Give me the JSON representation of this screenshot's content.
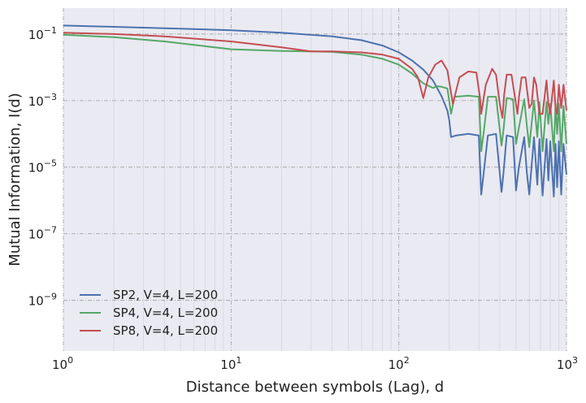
{
  "chart_data": {
    "type": "line",
    "title": "",
    "xlabel": "Distance between symbols (Lag), d",
    "ylabel": "Mutual Information, I(d)",
    "xscale": "log",
    "yscale": "log",
    "xlim": [
      1,
      1000
    ],
    "ylim": [
      3e-11,
      0.6
    ],
    "x_ticks": [
      {
        "value": 1,
        "mantissa": "10",
        "exp": "0"
      },
      {
        "value": 10,
        "mantissa": "10",
        "exp": "1"
      },
      {
        "value": 100,
        "mantissa": "10",
        "exp": "2"
      },
      {
        "value": 1000,
        "mantissa": "10",
        "exp": "3"
      }
    ],
    "y_ticks": [
      {
        "value": 1e-09,
        "mantissa": "10",
        "exp": "−9"
      },
      {
        "value": 1e-07,
        "mantissa": "10",
        "exp": "−7"
      },
      {
        "value": 1e-05,
        "mantissa": "10",
        "exp": "−5"
      },
      {
        "value": 0.001,
        "mantissa": "10",
        "exp": "−3"
      },
      {
        "value": 0.1,
        "mantissa": "10",
        "exp": "−1"
      }
    ],
    "grid": true,
    "legend_position": "bottom-left",
    "background": "#eaeaf2",
    "series": [
      {
        "name": "SP2, V=4, L=200",
        "color": "#4c72b0",
        "x": [
          1,
          2,
          4,
          10,
          20,
          40,
          60,
          80,
          100,
          120,
          140,
          160,
          180,
          195,
          200,
          205,
          220,
          260,
          300,
          310,
          320,
          340,
          380,
          410,
          420,
          440,
          480,
          500,
          520,
          560,
          580,
          600,
          640,
          670,
          690,
          720,
          760,
          780,
          800,
          840,
          860,
          880,
          900,
          930,
          960,
          1000
        ],
        "y": [
          0.18,
          0.165,
          0.15,
          0.13,
          0.11,
          0.085,
          0.065,
          0.045,
          0.028,
          0.016,
          0.0085,
          0.004,
          0.00135,
          0.0005,
          0.00025,
          8e-05,
          9e-05,
          0.0001,
          9e-05,
          1.5e-06,
          6e-06,
          9e-05,
          0.0001,
          1.8e-06,
          6e-06,
          9e-05,
          8e-05,
          2e-06,
          1e-05,
          8e-05,
          7e-06,
          1.5e-06,
          8e-05,
          3e-06,
          7e-05,
          1.4e-06,
          7e-05,
          4e-06,
          6e-05,
          1.3e-06,
          5e-05,
          2.5e-06,
          6e-05,
          1.5e-06,
          5e-05,
          6e-06
        ]
      },
      {
        "name": "SP4, V=4, L=200",
        "color": "#55a868",
        "x": [
          1,
          2,
          4,
          10,
          20,
          30,
          40,
          60,
          80,
          100,
          120,
          140,
          160,
          170,
          180,
          195,
          205,
          215,
          260,
          300,
          310,
          320,
          340,
          380,
          410,
          420,
          440,
          480,
          500,
          520,
          560,
          580,
          600,
          640,
          670,
          690,
          720,
          760,
          780,
          800,
          840,
          860,
          880,
          900,
          930,
          960,
          1000
        ],
        "y": [
          0.095,
          0.08,
          0.06,
          0.035,
          0.031,
          0.03,
          0.029,
          0.024,
          0.018,
          0.012,
          0.0065,
          0.0033,
          0.0024,
          0.0027,
          0.0026,
          0.0023,
          0.0004,
          0.0013,
          0.0014,
          0.0013,
          3e-05,
          0.0001,
          0.0013,
          0.0013,
          4.5e-05,
          0.00012,
          0.0012,
          0.0011,
          5e-05,
          0.00015,
          0.0011,
          0.00018,
          4e-05,
          0.001,
          8e-05,
          0.0009,
          3e-05,
          0.0009,
          0.0002,
          0.0008,
          3e-05,
          0.0008,
          0.0001,
          0.0008,
          3e-05,
          0.0007,
          5e-05
        ]
      },
      {
        "name": "SP8, V=4, L=200",
        "color": "#c44e52",
        "x": [
          1,
          2,
          4,
          10,
          20,
          30,
          40,
          60,
          80,
          100,
          120,
          130,
          140,
          150,
          165,
          180,
          195,
          210,
          230,
          260,
          290,
          305,
          310,
          330,
          360,
          380,
          400,
          415,
          425,
          440,
          470,
          490,
          510,
          520,
          540,
          570,
          600,
          620,
          640,
          660,
          690,
          720,
          760,
          780,
          800,
          840,
          860,
          880,
          900,
          930,
          960,
          1000
        ],
        "y": [
          0.11,
          0.1,
          0.085,
          0.06,
          0.04,
          0.03,
          0.03,
          0.028,
          0.024,
          0.018,
          0.009,
          0.005,
          0.0012,
          0.005,
          0.012,
          0.016,
          0.008,
          0.0008,
          0.005,
          0.0075,
          0.007,
          0.0012,
          0.0004,
          0.003,
          0.009,
          0.006,
          0.0008,
          0.0003,
          0.0015,
          0.006,
          0.006,
          0.0015,
          0.0004,
          0.0012,
          0.005,
          0.005,
          0.0006,
          0.0008,
          0.005,
          0.003,
          0.0004,
          0.0004,
          0.004,
          0.0008,
          0.0004,
          0.004,
          0.0006,
          0.0004,
          0.003,
          0.0006,
          0.003,
          0.0005
        ]
      }
    ]
  }
}
